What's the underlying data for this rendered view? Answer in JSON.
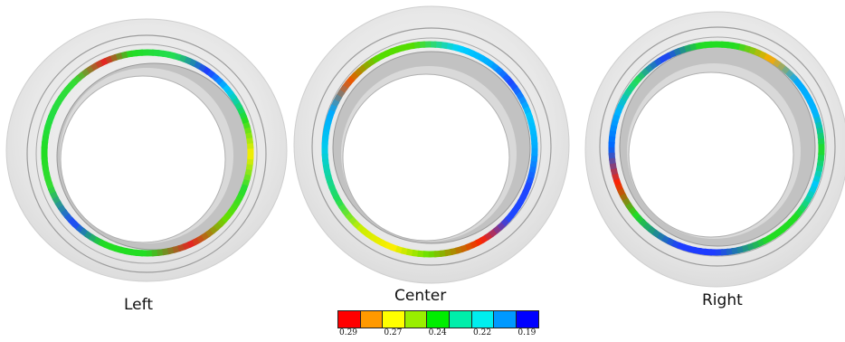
{
  "captions": {
    "left": "Left",
    "center": "Center",
    "right": "Right"
  },
  "legend": {
    "colors": [
      "#ff0000",
      "#ff9900",
      "#ffff00",
      "#99ee00",
      "#00ee00",
      "#00eeaa",
      "#00eeee",
      "#0099ff",
      "#0000ff"
    ],
    "tick_labels": [
      "0.29",
      "0.27",
      "0.24",
      "0.22",
      "0.19"
    ]
  },
  "colors": {
    "housing": "#e6e6e6",
    "housing_rim": "#d2d2d2",
    "inner_ring": "#bdbdbd",
    "outline": "#8c8c8c"
  },
  "rings": [
    {
      "name": "left",
      "stops": [
        [
          0,
          "#ffee00"
        ],
        [
          20,
          "#22dd22"
        ],
        [
          40,
          "#00c8ff"
        ],
        [
          55,
          "#1e3cff"
        ],
        [
          75,
          "#22dd55"
        ],
        [
          100,
          "#22dd22"
        ],
        [
          115,
          "#e62222"
        ],
        [
          135,
          "#33dd33"
        ],
        [
          160,
          "#22dd44"
        ],
        [
          180,
          "#22dd22"
        ],
        [
          200,
          "#33dd33"
        ],
        [
          225,
          "#1e46ff"
        ],
        [
          245,
          "#22dd22"
        ],
        [
          270,
          "#22dd22"
        ],
        [
          295,
          "#e62222"
        ],
        [
          320,
          "#66e000"
        ],
        [
          340,
          "#22dd33"
        ],
        [
          360,
          "#ffee00"
        ]
      ]
    },
    {
      "name": "center",
      "stops": [
        [
          0,
          "#00aaff"
        ],
        [
          20,
          "#00c8ff"
        ],
        [
          40,
          "#1e46ff"
        ],
        [
          55,
          "#00aaff"
        ],
        [
          75,
          "#00d2ff"
        ],
        [
          100,
          "#55dd00"
        ],
        [
          120,
          "#55dd00"
        ],
        [
          140,
          "#ee5500"
        ],
        [
          160,
          "#00aaff"
        ],
        [
          180,
          "#00ccee"
        ],
        [
          210,
          "#22dd55"
        ],
        [
          230,
          "#ccee00"
        ],
        [
          250,
          "#ffee00"
        ],
        [
          270,
          "#66e000"
        ],
        [
          300,
          "#ff2200"
        ],
        [
          320,
          "#1e46ff"
        ],
        [
          340,
          "#1e46ff"
        ],
        [
          360,
          "#00aaff"
        ]
      ]
    },
    {
      "name": "right",
      "stops": [
        [
          0,
          "#22dd22"
        ],
        [
          20,
          "#00b4ff"
        ],
        [
          40,
          "#00aaff"
        ],
        [
          60,
          "#ffaa00"
        ],
        [
          80,
          "#22dd22"
        ],
        [
          100,
          "#22dd22"
        ],
        [
          120,
          "#1e3cff"
        ],
        [
          140,
          "#22dd55"
        ],
        [
          160,
          "#00b4ff"
        ],
        [
          180,
          "#0064ff"
        ],
        [
          200,
          "#ff2200"
        ],
        [
          220,
          "#22dd22"
        ],
        [
          250,
          "#1e3cff"
        ],
        [
          270,
          "#1e3cff"
        ],
        [
          300,
          "#22dd22"
        ],
        [
          320,
          "#22dd22"
        ],
        [
          340,
          "#00c8ff"
        ],
        [
          360,
          "#22dd22"
        ]
      ]
    }
  ]
}
